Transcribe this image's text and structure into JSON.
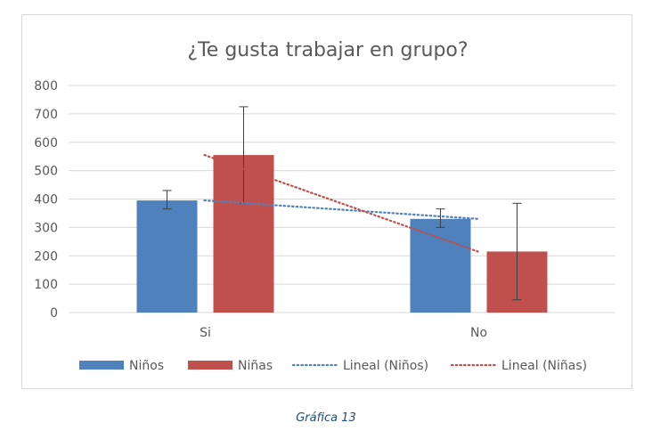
{
  "chart_data": {
    "type": "bar",
    "title": "¿Te gusta trabajar en grupo?",
    "categories": [
      "Si",
      "No"
    ],
    "ylim": [
      0,
      800
    ],
    "yticks": [
      0,
      100,
      200,
      300,
      400,
      500,
      600,
      700,
      800
    ],
    "grid": true,
    "legend_position": "bottom",
    "series": [
      {
        "name": "Niños",
        "color": "#4f81bd",
        "values": [
          395,
          330
        ],
        "error": [
          [
            365,
            430
          ],
          [
            300,
            365
          ]
        ]
      },
      {
        "name": "Niñas",
        "color": "#c0504d",
        "values": [
          555,
          215
        ],
        "error": [
          [
            385,
            725
          ],
          [
            45,
            385
          ]
        ]
      }
    ],
    "trendlines": [
      {
        "name": "Lineal (Niños)",
        "color": "#4f81bd",
        "style": "dotted",
        "values": [
          395,
          330
        ]
      },
      {
        "name": "Lineal (Niñas)",
        "color": "#c0504d",
        "style": "dotted",
        "values": [
          555,
          215
        ]
      }
    ]
  },
  "caption": "Gráfica 13"
}
